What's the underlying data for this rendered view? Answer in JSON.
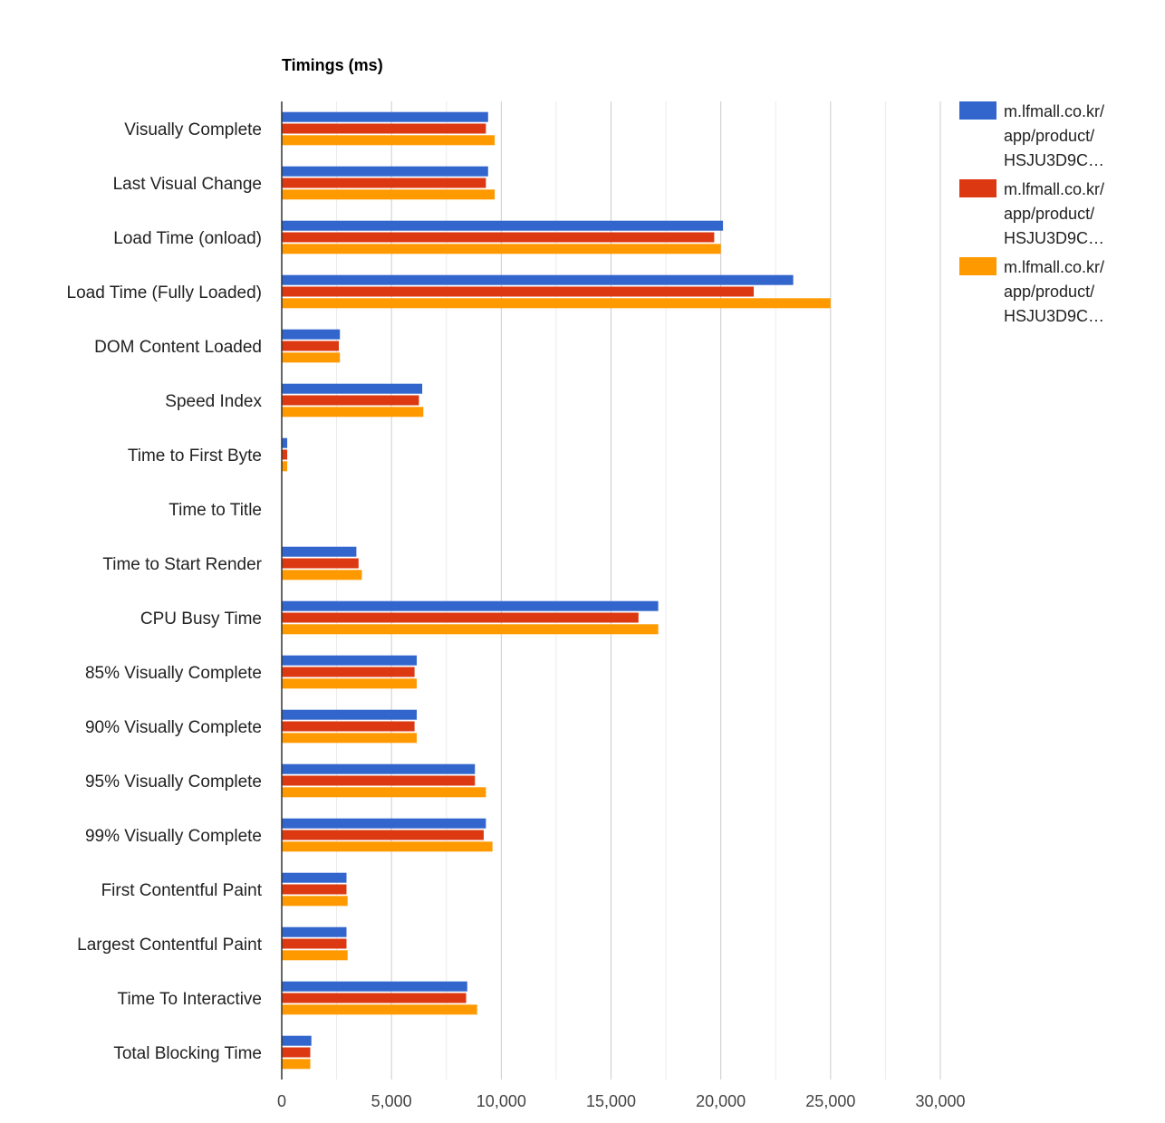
{
  "chart_data": {
    "type": "bar",
    "orientation": "horizontal",
    "title": "Timings (ms)",
    "xlabel": "",
    "ylabel": "",
    "xlim": [
      0,
      30000
    ],
    "ticks": [
      "0",
      "5,000",
      "10,000",
      "15,000",
      "20,000",
      "25,000",
      "30,000"
    ],
    "grid": true,
    "legend_position": "right",
    "categories": [
      "Visually Complete",
      "Last Visual Change",
      "Load Time (onload)",
      "Load Time (Fully Loaded)",
      "DOM Content Loaded",
      "Speed Index",
      "Time to First Byte",
      "Time to Title",
      "Time to Start Render",
      "CPU Busy Time",
      "85% Visually Complete",
      "90% Visually Complete",
      "95% Visually Complete",
      "99% Visually Complete",
      "First Contentful Paint",
      "Largest Contentful Paint",
      "Time To Interactive",
      "Total Blocking Time"
    ],
    "series": [
      {
        "name": "m.lfmall.co.kr/app/product/HSJU3D9C…",
        "legend_lines": [
          "m.lfmall.co.kr/",
          "app/product/",
          "HSJU3D9C…"
        ],
        "color": "#3366cc",
        "values": [
          9400,
          9400,
          20100,
          23300,
          2650,
          6400,
          250,
          20,
          3400,
          17150,
          6150,
          6150,
          8800,
          9300,
          2950,
          2950,
          8450,
          1350
        ]
      },
      {
        "name": "m.lfmall.co.kr/app/product/HSJU3D9C…",
        "legend_lines": [
          "m.lfmall.co.kr/",
          "app/product/",
          "HSJU3D9C…"
        ],
        "color": "#dc3912",
        "values": [
          9300,
          9300,
          19700,
          21500,
          2600,
          6250,
          250,
          20,
          3500,
          16250,
          6050,
          6050,
          8800,
          9200,
          2950,
          2950,
          8400,
          1300
        ]
      },
      {
        "name": "m.lfmall.co.kr/app/product/HSJU3D9C…",
        "legend_lines": [
          "m.lfmall.co.kr/",
          "app/product/",
          "HSJU3D9C…"
        ],
        "color": "#ff9900",
        "values": [
          9700,
          9700,
          20000,
          25000,
          2650,
          6450,
          250,
          20,
          3650,
          17150,
          6150,
          6150,
          9300,
          9600,
          3000,
          3000,
          8900,
          1300
        ]
      }
    ]
  }
}
